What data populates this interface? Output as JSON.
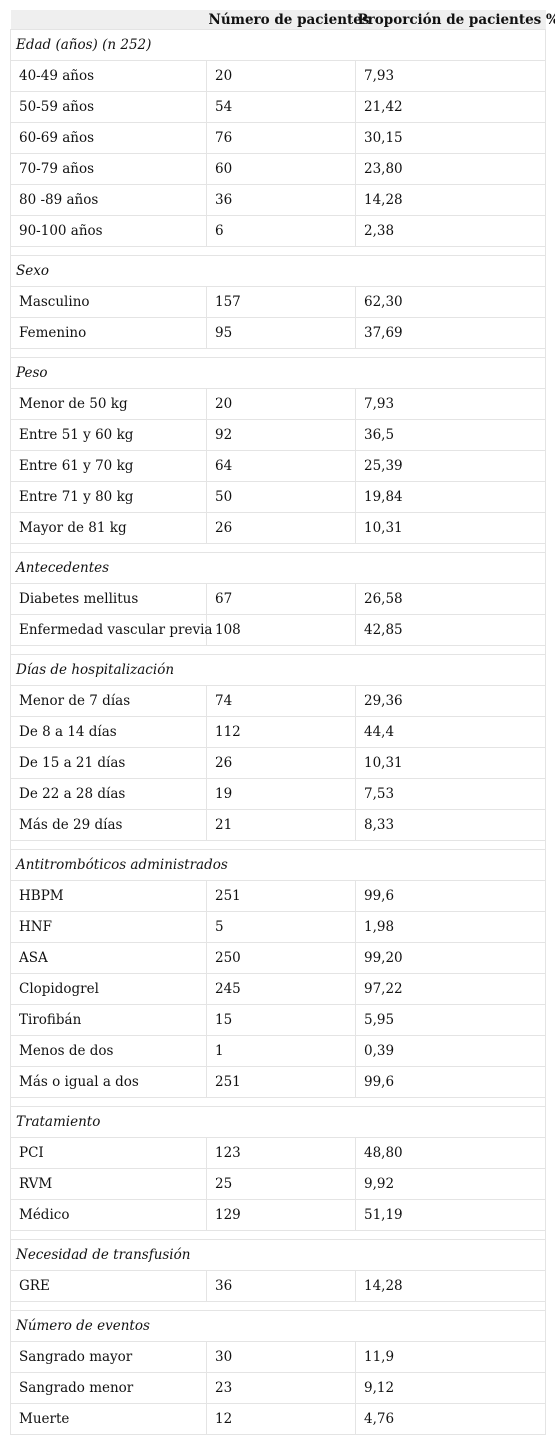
{
  "table": {
    "headers": [
      "",
      "Número de pacientes",
      "Proporción de pacientes %"
    ],
    "sections": [
      {
        "title": "Edad (años) (n 252)",
        "rows": [
          {
            "label": "40-49 años",
            "count": "20",
            "pct": "7,93"
          },
          {
            "label": "50-59 años",
            "count": "54",
            "pct": "21,42"
          },
          {
            "label": "60-69 años",
            "count": "76",
            "pct": "30,15"
          },
          {
            "label": "70-79 años",
            "count": "60",
            "pct": "23,80"
          },
          {
            "label": "80 -89 años",
            "count": "36",
            "pct": "14,28"
          },
          {
            "label": "90-100 años",
            "count": "6",
            "pct": "2,38"
          }
        ]
      },
      {
        "title": "Sexo",
        "rows": [
          {
            "label": "Masculino",
            "count": "157",
            "pct": "62,30"
          },
          {
            "label": "Femenino",
            "count": "95",
            "pct": "37,69"
          }
        ]
      },
      {
        "title": "Peso",
        "rows": [
          {
            "label": "Menor de 50 kg",
            "count": "20",
            "pct": "7,93"
          },
          {
            "label": "Entre 51 y 60 kg",
            "count": "92",
            "pct": "36,5"
          },
          {
            "label": "Entre 61 y 70 kg",
            "count": "64",
            "pct": "25,39"
          },
          {
            "label": "Entre 71 y 80 kg",
            "count": "50",
            "pct": "19,84"
          },
          {
            "label": "Mayor de 81 kg",
            "count": "26",
            "pct": "10,31"
          }
        ]
      },
      {
        "title": "Antecedentes",
        "rows": [
          {
            "label": "Diabetes mellitus",
            "count": "67",
            "pct": "26,58"
          },
          {
            "label": "Enfermedad vascular previa",
            "count": "108",
            "pct": "42,85"
          }
        ]
      },
      {
        "title": "Días de hospitalización",
        "rows": [
          {
            "label": "Menor de 7 días",
            "count": "74",
            "pct": "29,36"
          },
          {
            "label": "De 8 a 14 días",
            "count": "112",
            "pct": "44,4"
          },
          {
            "label": "De 15 a 21 días",
            "count": "26",
            "pct": "10,31"
          },
          {
            "label": "De 22 a 28 días",
            "count": "19",
            "pct": "7,53"
          },
          {
            "label": "Más de 29 días",
            "count": "21",
            "pct": "8,33"
          }
        ]
      },
      {
        "title": "Antitrombóticos administrados",
        "rows": [
          {
            "label": "HBPM",
            "count": "251",
            "pct": "99,6"
          },
          {
            "label": "HNF",
            "count": "5",
            "pct": "1,98"
          },
          {
            "label": "ASA",
            "count": "250",
            "pct": "99,20"
          },
          {
            "label": "Clopidogrel",
            "count": "245",
            "pct": "97,22"
          },
          {
            "label": "Tirofibán",
            "count": "15",
            "pct": "5,95"
          },
          {
            "label": "Menos de dos",
            "count": "1",
            "pct": "0,39"
          },
          {
            "label": "Más o igual a dos",
            "count": "251",
            "pct": "99,6"
          }
        ]
      },
      {
        "title": "Tratamiento",
        "rows": [
          {
            "label": "PCI",
            "count": "123",
            "pct": "48,80"
          },
          {
            "label": "RVM",
            "count": "25",
            "pct": "9,92"
          },
          {
            "label": "Médico",
            "count": "129",
            "pct": "51,19"
          }
        ]
      },
      {
        "title": "Necesidad de transfusión",
        "rows": [
          {
            "label": "GRE",
            "count": "36",
            "pct": "14,28"
          }
        ]
      },
      {
        "title": "Número de eventos",
        "rows": [
          {
            "label": "Sangrado mayor",
            "count": "30",
            "pct": "11,9"
          },
          {
            "label": "Sangrado menor",
            "count": "23",
            "pct": "9,12"
          },
          {
            "label": "Muerte",
            "count": "12",
            "pct": "4,76"
          }
        ]
      }
    ]
  }
}
